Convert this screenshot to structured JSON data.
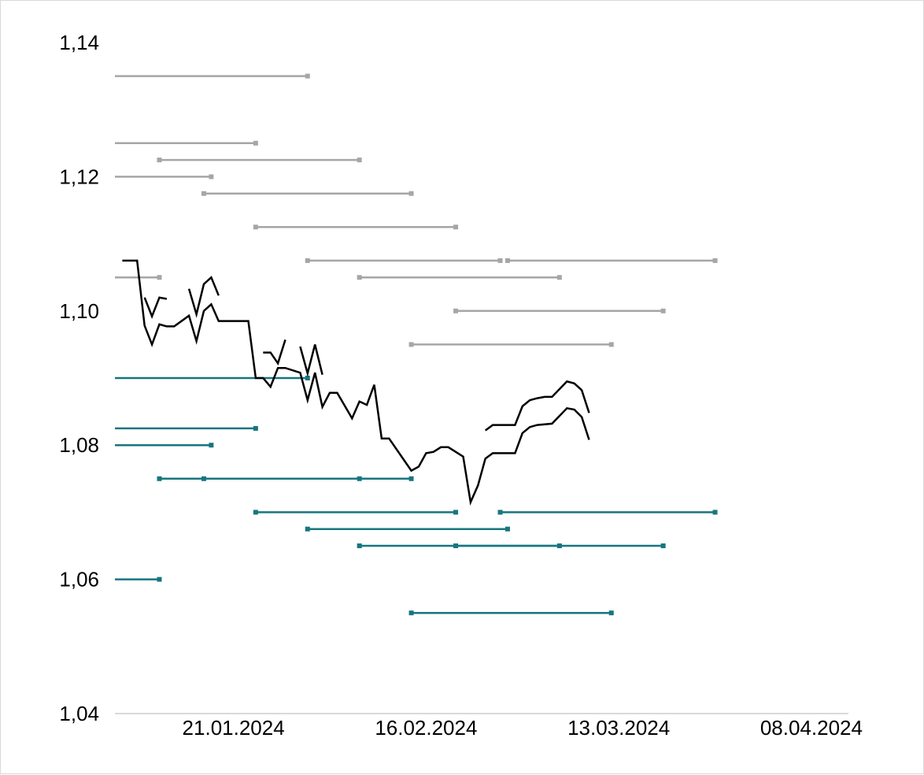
{
  "chart_data": {
    "type": "line",
    "title": "",
    "xlabel": "",
    "ylabel": "",
    "x_type": "date",
    "xlim": [
      "2024-01-05",
      "2024-04-13"
    ],
    "ylim": [
      1.04,
      1.14
    ],
    "y_ticks": [
      "1,04",
      "1,06",
      "1,08",
      "1,10",
      "1,12",
      "1,14"
    ],
    "y_tick_values": [
      1.04,
      1.06,
      1.08,
      1.1,
      1.12,
      1.14
    ],
    "x_ticks": [
      "21.01.2024",
      "16.02.2024",
      "13.03.2024",
      "08.04.2024"
    ],
    "x_tick_dates": [
      "2024-01-21",
      "2024-02-16",
      "2024-03-13",
      "2024-04-08"
    ],
    "grid": false,
    "legend": "none",
    "colors": {
      "spot_line": "#000000",
      "upper_bands": "#a6a6a6",
      "lower_bands": "#17767f",
      "axis": "#d9d9d9"
    },
    "series": [
      {
        "points": [
          [
            "2024-01-06",
            1.1075
          ],
          [
            "2024-01-08",
            1.1075
          ],
          [
            "2024-01-09",
            1.0978
          ],
          [
            "2024-01-10",
            1.095
          ],
          [
            "2024-01-11",
            1.098
          ],
          [
            "2024-01-12",
            1.0977
          ],
          [
            "2024-01-13",
            1.0977
          ],
          [
            "2024-01-15",
            1.0993
          ],
          [
            "2024-01-16",
            1.0955
          ],
          [
            "2024-01-17",
            1.1
          ],
          [
            "2024-01-18",
            1.101
          ],
          [
            "2024-01-19",
            1.0985
          ],
          [
            "2024-01-22",
            1.0985
          ],
          [
            "2024-01-23",
            1.0985
          ],
          [
            "2024-01-24",
            1.09
          ],
          [
            "2024-01-25",
            1.09
          ],
          [
            "2024-01-26",
            1.0887
          ],
          [
            "2024-01-27",
            1.0915
          ],
          [
            "2024-01-28",
            1.0915
          ],
          [
            "2024-01-30",
            1.0908
          ],
          [
            "2024-01-31",
            1.0867
          ],
          [
            "2024-02-01",
            1.0908
          ],
          [
            "2024-02-02",
            1.0857
          ],
          [
            "2024-02-03",
            1.0878
          ],
          [
            "2024-02-04",
            1.0878
          ],
          [
            "2024-02-06",
            1.084
          ],
          [
            "2024-02-07",
            1.0865
          ],
          [
            "2024-02-08",
            1.086
          ],
          [
            "2024-02-09",
            1.089
          ],
          [
            "2024-02-10",
            1.081
          ],
          [
            "2024-02-11",
            1.081
          ],
          [
            "2024-02-14",
            1.0762
          ],
          [
            "2024-02-15",
            1.0768
          ],
          [
            "2024-02-16",
            1.0788
          ],
          [
            "2024-02-17",
            1.079
          ],
          [
            "2024-02-18",
            1.0797
          ],
          [
            "2024-02-19",
            1.0797
          ],
          [
            "2024-02-21",
            1.0783
          ],
          [
            "2024-02-22",
            1.0715
          ],
          [
            "2024-02-23",
            1.074
          ],
          [
            "2024-02-24",
            1.078
          ],
          [
            "2024-02-25",
            1.0788
          ],
          [
            "2024-02-28",
            1.0788
          ],
          [
            "2024-02-29",
            1.0818
          ],
          [
            "2024-03-01",
            1.0827
          ],
          [
            "2024-03-02",
            1.083
          ],
          [
            "2024-03-04",
            1.0832
          ],
          [
            "2024-03-06",
            1.0855
          ],
          [
            "2024-03-07",
            1.0853
          ],
          [
            "2024-03-08",
            1.0842
          ],
          [
            "2024-03-09",
            1.0808
          ]
        ]
      },
      {
        "points": [
          [
            "2024-01-09",
            1.102
          ],
          [
            "2024-01-10",
            1.0992
          ],
          [
            "2024-01-11",
            1.102
          ],
          [
            "2024-01-12",
            1.1018
          ]
        ]
      },
      {
        "points": [
          [
            "2024-01-15",
            1.1033
          ],
          [
            "2024-01-16",
            1.0995
          ],
          [
            "2024-01-17",
            1.104
          ],
          [
            "2024-01-18",
            1.105
          ],
          [
            "2024-01-19",
            1.1023
          ]
        ]
      },
      {
        "points": [
          [
            "2024-01-25",
            1.0938
          ],
          [
            "2024-01-26",
            1.0938
          ],
          [
            "2024-01-27",
            1.0922
          ],
          [
            "2024-01-28",
            1.0957
          ]
        ]
      },
      {
        "points": [
          [
            "2024-01-30",
            1.0947
          ],
          [
            "2024-01-31",
            1.0907
          ],
          [
            "2024-02-01",
            1.095
          ],
          [
            "2024-02-02",
            1.0905
          ]
        ]
      },
      {
        "points": [
          [
            "2024-02-24",
            1.0822
          ],
          [
            "2024-02-25",
            1.083
          ],
          [
            "2024-02-28",
            1.083
          ],
          [
            "2024-02-29",
            1.0858
          ],
          [
            "2024-03-01",
            1.0867
          ],
          [
            "2024-03-02",
            1.087
          ],
          [
            "2024-03-03",
            1.0872
          ],
          [
            "2024-03-04",
            1.0872
          ],
          [
            "2024-03-06",
            1.0895
          ],
          [
            "2024-03-07",
            1.0892
          ],
          [
            "2024-03-08",
            1.0882
          ],
          [
            "2024-03-09",
            1.0848
          ]
        ]
      }
    ],
    "forecast_ranges": [
      {
        "band": "upper",
        "y": 1.135,
        "start": "2024-01-05",
        "end": "2024-01-31"
      },
      {
        "band": "upper",
        "y": 1.125,
        "start": "2024-01-05",
        "end": "2024-01-24"
      },
      {
        "band": "upper",
        "y": 1.1225,
        "start": "2024-01-11",
        "end": "2024-02-07"
      },
      {
        "band": "upper",
        "y": 1.12,
        "start": "2024-01-05",
        "end": "2024-01-18"
      },
      {
        "band": "upper",
        "y": 1.1175,
        "start": "2024-01-17",
        "end": "2024-02-14"
      },
      {
        "band": "upper",
        "y": 1.1125,
        "start": "2024-01-24",
        "end": "2024-02-20"
      },
      {
        "band": "upper",
        "y": 1.1075,
        "start": "2024-01-31",
        "end": "2024-02-26"
      },
      {
        "band": "upper",
        "y": 1.1075,
        "start": "2024-02-27",
        "end": "2024-03-26"
      },
      {
        "band": "upper",
        "y": 1.105,
        "start": "2024-01-05",
        "end": "2024-01-11"
      },
      {
        "band": "upper",
        "y": 1.105,
        "start": "2024-02-07",
        "end": "2024-03-05"
      },
      {
        "band": "upper",
        "y": 1.1,
        "start": "2024-02-20",
        "end": "2024-03-19"
      },
      {
        "band": "upper",
        "y": 1.095,
        "start": "2024-02-14",
        "end": "2024-03-12"
      },
      {
        "band": "lower",
        "y": 1.09,
        "start": "2024-01-05",
        "end": "2024-01-31"
      },
      {
        "band": "lower",
        "y": 1.0825,
        "start": "2024-01-05",
        "end": "2024-01-24"
      },
      {
        "band": "lower",
        "y": 1.08,
        "start": "2024-01-05",
        "end": "2024-01-18"
      },
      {
        "band": "lower",
        "y": 1.075,
        "start": "2024-01-11",
        "end": "2024-02-07"
      },
      {
        "band": "lower",
        "y": 1.075,
        "start": "2024-01-17",
        "end": "2024-02-14"
      },
      {
        "band": "lower",
        "y": 1.07,
        "start": "2024-01-24",
        "end": "2024-02-20"
      },
      {
        "band": "lower",
        "y": 1.07,
        "start": "2024-02-26",
        "end": "2024-03-26"
      },
      {
        "band": "lower",
        "y": 1.0675,
        "start": "2024-01-31",
        "end": "2024-02-27"
      },
      {
        "band": "lower",
        "y": 1.065,
        "start": "2024-02-07",
        "end": "2024-03-05"
      },
      {
        "band": "lower",
        "y": 1.065,
        "start": "2024-02-20",
        "end": "2024-03-19"
      },
      {
        "band": "lower",
        "y": 1.06,
        "start": "2024-01-05",
        "end": "2024-01-11"
      },
      {
        "band": "lower",
        "y": 1.055,
        "start": "2024-02-14",
        "end": "2024-03-12"
      }
    ]
  }
}
